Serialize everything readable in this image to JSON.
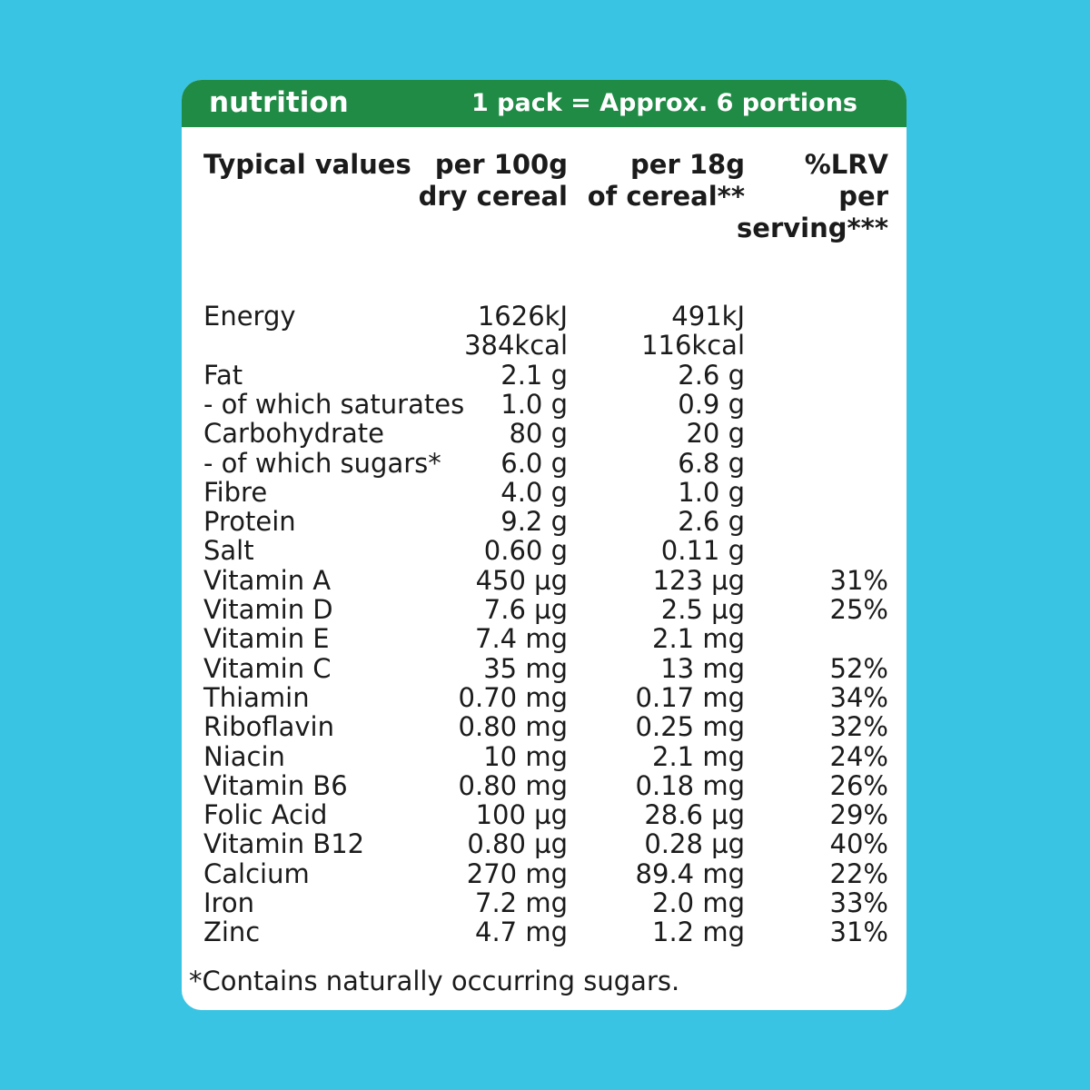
{
  "header": {
    "title": "nutrition",
    "subtitle": "1 pack = Approx. 6 portions"
  },
  "table": {
    "headers": [
      [
        "Typical values"
      ],
      [
        "per 100g",
        "dry cereal"
      ],
      [
        "per 18g",
        "of cereal**"
      ],
      [
        "%LRV",
        "per",
        "serving***"
      ]
    ],
    "rows": [
      {
        "label": "Energy",
        "cells": [
          [
            "1626kJ",
            "384kcal"
          ],
          [
            "491kJ",
            "116kcal"
          ],
          []
        ]
      },
      {
        "label": "Fat",
        "cells": [
          [
            "2.1 g"
          ],
          [
            "2.6 g"
          ],
          []
        ]
      },
      {
        "label": "- of which saturates",
        "cells": [
          [
            "1.0 g"
          ],
          [
            "0.9 g"
          ],
          []
        ]
      },
      {
        "label": "Carbohydrate",
        "cells": [
          [
            "80 g"
          ],
          [
            "20 g"
          ],
          []
        ]
      },
      {
        "label": "- of which sugars*",
        "cells": [
          [
            "6.0 g"
          ],
          [
            "6.8 g"
          ],
          []
        ]
      },
      {
        "label": "Fibre",
        "cells": [
          [
            "4.0 g"
          ],
          [
            "1.0 g"
          ],
          []
        ]
      },
      {
        "label": "Protein",
        "cells": [
          [
            "9.2 g"
          ],
          [
            "2.6 g"
          ],
          []
        ]
      },
      {
        "label": "Salt",
        "cells": [
          [
            "0.60 g"
          ],
          [
            "0.11 g"
          ],
          []
        ]
      },
      {
        "label": "Vitamin A",
        "cells": [
          [
            "450 µg"
          ],
          [
            "123 µg"
          ],
          [
            "31%"
          ]
        ]
      },
      {
        "label": "Vitamin D",
        "cells": [
          [
            "7.6 µg"
          ],
          [
            "2.5 µg"
          ],
          [
            "25%"
          ]
        ]
      },
      {
        "label": "Vitamin E",
        "cells": [
          [
            "7.4 mg"
          ],
          [
            "2.1 mg"
          ],
          []
        ]
      },
      {
        "label": "Vitamin C",
        "cells": [
          [
            "35 mg"
          ],
          [
            "13 mg"
          ],
          [
            "52%"
          ]
        ]
      },
      {
        "label": "Thiamin",
        "cells": [
          [
            "0.70 mg"
          ],
          [
            "0.17 mg"
          ],
          [
            "34%"
          ]
        ]
      },
      {
        "label": "Riboflavin",
        "cells": [
          [
            "0.80 mg"
          ],
          [
            "0.25 mg"
          ],
          [
            "32%"
          ]
        ]
      },
      {
        "label": "Niacin",
        "cells": [
          [
            "10 mg"
          ],
          [
            "2.1 mg"
          ],
          [
            "24%"
          ]
        ]
      },
      {
        "label": "Vitamin B6",
        "cells": [
          [
            "0.80 mg"
          ],
          [
            "0.18 mg"
          ],
          [
            "26%"
          ]
        ]
      },
      {
        "label": "Folic Acid",
        "cells": [
          [
            "100 µg"
          ],
          [
            "28.6 µg"
          ],
          [
            "29%"
          ]
        ]
      },
      {
        "label": "Vitamin B12",
        "cells": [
          [
            "0.80 µg"
          ],
          [
            "0.28 µg"
          ],
          [
            "40%"
          ]
        ]
      },
      {
        "label": "Calcium",
        "cells": [
          [
            "270 mg"
          ],
          [
            "89.4 mg"
          ],
          [
            "22%"
          ]
        ]
      },
      {
        "label": "Iron",
        "cells": [
          [
            "7.2 mg"
          ],
          [
            "2.0 mg"
          ],
          [
            "33%"
          ]
        ]
      },
      {
        "label": "Zinc",
        "cells": [
          [
            "4.7 mg"
          ],
          [
            "1.2 mg"
          ],
          [
            "31%"
          ]
        ]
      }
    ]
  },
  "footnote": "*Contains naturally occurring sugars."
}
